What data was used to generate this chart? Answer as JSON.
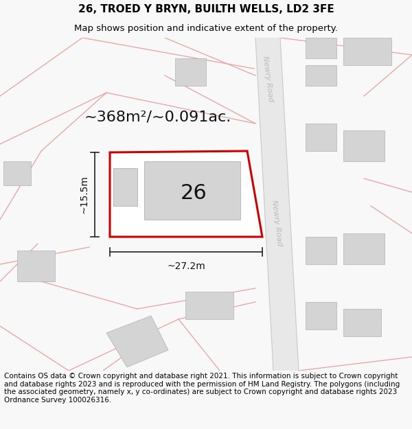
{
  "title_line1": "26, TROED Y BRYN, BUILTH WELLS, LD2 3FE",
  "title_line2": "Map shows position and indicative extent of the property.",
  "area_text": "~368m²/~0.091ac.",
  "label_26": "26",
  "dim_width": "~27.2m",
  "dim_height": "~15.5m",
  "road_label_top": "Newry Road",
  "road_label_bottom": "Newry Road",
  "footer_text": "Contains OS data © Crown copyright and database right 2021. This information is subject to Crown copyright and database rights 2023 and is reproduced with the permission of HM Land Registry. The polygons (including the associated geometry, namely x, y co-ordinates) are subject to Crown copyright and database rights 2023 Ordnance Survey 100026316.",
  "bg_color": "#f8f8f8",
  "map_bg": "#ffffff",
  "plot_edge": "#cc0000",
  "building_fill": "#d4d4d4",
  "building_edge": "#b0b0b0",
  "road_line_color": "#e8a0a0",
  "dim_line_color": "#222222",
  "road_fill": "#e8e8e8",
  "road_edge_color": "#c8c8c8",
  "title_fontsize": 11,
  "subtitle_fontsize": 9.5,
  "area_fontsize": 16,
  "label_fontsize": 22,
  "footer_fontsize": 7.5,
  "road_label_color": "#bbbbbb",
  "road_label_fontsize": 8
}
